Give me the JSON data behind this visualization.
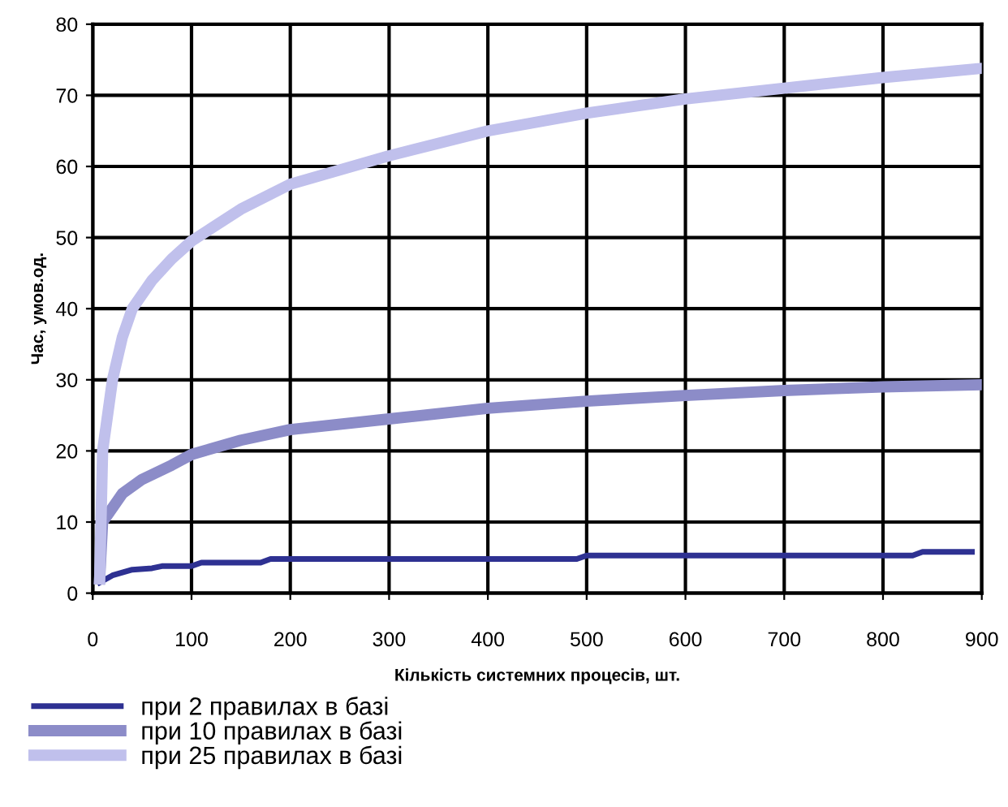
{
  "chart_data": {
    "type": "line",
    "xlabel": "Кількість системних процесів, шт.",
    "ylabel": "Час, умов.од.",
    "xlim": [
      0,
      900
    ],
    "xticks": [
      0,
      100,
      200,
      300,
      400,
      500,
      600,
      700,
      800,
      900
    ],
    "ylim": [
      0,
      80
    ],
    "yticks": [
      0,
      10,
      20,
      30,
      40,
      50,
      60,
      70,
      80
    ],
    "grid": true,
    "legend": "bottom",
    "marker": "none",
    "line_style": "solid",
    "series": [
      {
        "name": "при 2 правилах в базі",
        "color": "#2e3192",
        "x": [
          7,
          20,
          40,
          60,
          70,
          100,
          110,
          170,
          180,
          490,
          500,
          830,
          840,
          890
        ],
        "values": [
          1.5,
          2.5,
          3.3,
          3.5,
          3.8,
          3.8,
          4.3,
          4.3,
          4.8,
          4.8,
          5.3,
          5.3,
          5.8,
          5.8
        ]
      },
      {
        "name": "при 10 правилах в базі",
        "color": "#8c8cc8",
        "x": [
          7,
          10,
          20,
          30,
          50,
          80,
          100,
          150,
          200,
          300,
          400,
          500,
          600,
          700,
          800,
          900
        ],
        "values": [
          2,
          10,
          12,
          14,
          16,
          18,
          19.5,
          21.5,
          23,
          24.5,
          26,
          27,
          27.8,
          28.5,
          29,
          29.3
        ]
      },
      {
        "name": "при 25 правилах в базі",
        "color": "#c0c0ec",
        "x": [
          7,
          10,
          20,
          30,
          40,
          60,
          80,
          100,
          150,
          200,
          250,
          300,
          400,
          500,
          600,
          700,
          800,
          900
        ],
        "values": [
          2,
          20,
          30,
          36,
          40,
          44,
          47,
          49.5,
          54,
          57.5,
          59.5,
          61.5,
          65,
          67.5,
          69.5,
          71,
          72.5,
          73.8
        ]
      }
    ]
  }
}
